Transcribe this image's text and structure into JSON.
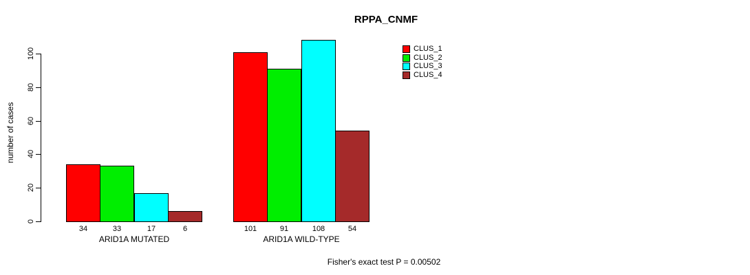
{
  "title": "RPPA_CNMF",
  "chart_data": {
    "type": "bar",
    "title": "RPPA_CNMF",
    "ylabel": "number of cases",
    "xlabel": "",
    "ylim": [
      0,
      100
    ],
    "yticks": [
      0,
      20,
      40,
      60,
      80,
      100
    ],
    "grid": false,
    "legend_position": "top-right",
    "categories": [
      "ARID1A MUTATED",
      "ARID1A WILD-TYPE"
    ],
    "series": [
      {
        "name": "CLUS_1",
        "color": "#FF0000",
        "values": [
          34,
          101
        ]
      },
      {
        "name": "CLUS_2",
        "color": "#00EE00",
        "values": [
          33,
          91
        ]
      },
      {
        "name": "CLUS_3",
        "color": "#00FFFF",
        "values": [
          17,
          108
        ]
      },
      {
        "name": "CLUS_4",
        "color": "#A52A2A",
        "values": [
          6,
          54
        ]
      }
    ],
    "bar_value_labels": [
      [
        34,
        33,
        17,
        6
      ],
      [
        101,
        91,
        108,
        54
      ]
    ],
    "annotation": "Fisher's exact test P = 0.00502"
  }
}
